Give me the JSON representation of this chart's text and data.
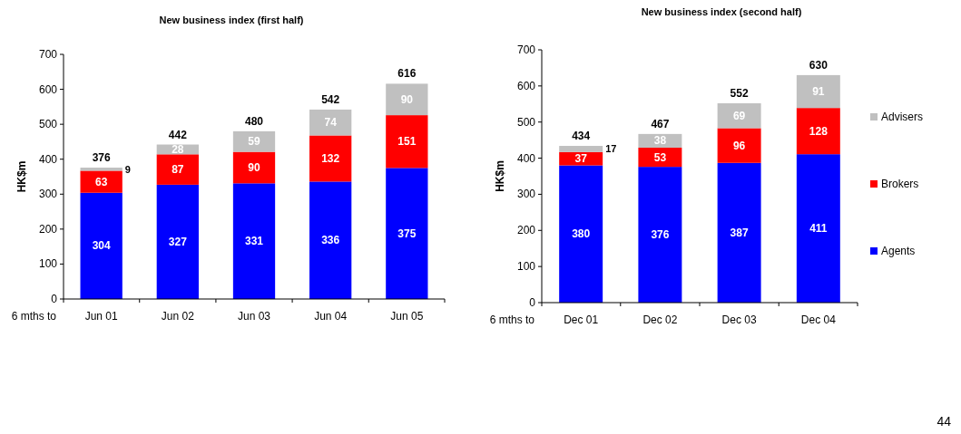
{
  "chart_data": [
    {
      "type": "bar",
      "title": "New business index (first half)",
      "xlabel": "6 mths to",
      "ylabel": "HK$m",
      "categories": [
        "Jun 01",
        "Jun 02",
        "Jun 03",
        "Jun 04",
        "Jun 05"
      ],
      "stacked": true,
      "series": [
        {
          "color": "#0000ff",
          "values": [
            304,
            327,
            331,
            336,
            375
          ]
        },
        {
          "color": "#ff0000",
          "values": [
            63,
            87,
            90,
            132,
            151
          ]
        },
        {
          "color": "#c0c0c0",
          "values": [
            9,
            28,
            59,
            74,
            90
          ]
        }
      ],
      "ylim": [
        0,
        700
      ],
      "yticks": [
        0,
        100,
        200,
        300,
        400,
        500,
        600,
        700
      ],
      "data_labels": true,
      "totals": [
        "376",
        "442",
        "480",
        "542",
        "616"
      ],
      "legend": false
    },
    {
      "type": "bar",
      "title": "New business index (second half)",
      "xlabel": "6 mths to",
      "ylabel": "HK$m",
      "categories": [
        "Dec 01",
        "Dec 02",
        "Dec 03",
        "Dec 04"
      ],
      "stacked": true,
      "series": [
        {
          "name": "Agents",
          "color": "#0000ff",
          "values": [
            380,
            376,
            387,
            411
          ]
        },
        {
          "name": "Brokers",
          "color": "#ff0000",
          "values": [
            37,
            53,
            96,
            128
          ]
        },
        {
          "name": "Advisers",
          "color": "#c0c0c0",
          "values": [
            17,
            38,
            69,
            91
          ]
        }
      ],
      "ylim": [
        0,
        700
      ],
      "yticks": [
        0,
        100,
        200,
        300,
        400,
        500,
        600,
        700
      ],
      "data_labels": true,
      "totals": [
        "434",
        "467",
        "552",
        "630"
      ],
      "legend": "right",
      "annotations": [
        "44"
      ]
    }
  ]
}
